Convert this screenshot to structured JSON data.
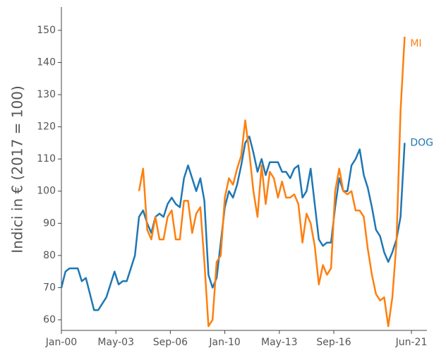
{
  "chart_data": {
    "type": "line",
    "y_label": "Indici in € (2017 = 100)",
    "x": [
      "2000-01",
      "2000-04",
      "2000-07",
      "2000-10",
      "2001-01",
      "2001-04",
      "2001-07",
      "2001-10",
      "2002-01",
      "2002-04",
      "2002-07",
      "2002-10",
      "2003-01",
      "2003-04",
      "2003-07",
      "2003-10",
      "2004-01",
      "2004-04",
      "2004-07",
      "2004-10",
      "2005-01",
      "2005-04",
      "2005-07",
      "2005-10",
      "2006-01",
      "2006-04",
      "2006-07",
      "2006-10",
      "2007-01",
      "2007-04",
      "2007-07",
      "2007-10",
      "2008-01",
      "2008-04",
      "2008-07",
      "2008-10",
      "2009-01",
      "2009-04",
      "2009-07",
      "2009-10",
      "2010-01",
      "2010-04",
      "2010-07",
      "2010-10",
      "2011-01",
      "2011-04",
      "2011-07",
      "2011-10",
      "2012-01",
      "2012-04",
      "2012-07",
      "2012-10",
      "2013-01",
      "2013-04",
      "2013-07",
      "2013-10",
      "2014-01",
      "2014-04",
      "2014-07",
      "2014-10",
      "2015-01",
      "2015-04",
      "2015-07",
      "2015-10",
      "2016-01",
      "2016-04",
      "2016-07",
      "2016-10",
      "2017-01",
      "2017-04",
      "2017-07",
      "2017-10",
      "2018-01",
      "2018-04",
      "2018-07",
      "2018-10",
      "2019-01",
      "2019-04",
      "2019-07",
      "2019-10",
      "2020-01",
      "2020-04",
      "2020-07",
      "2020-10",
      "2021-01"
    ],
    "series": [
      {
        "name": "DOG",
        "color": "#1f77b4",
        "values": [
          70,
          75,
          76,
          76,
          76,
          72,
          73,
          68,
          63,
          63,
          65,
          67,
          71,
          75,
          71,
          72,
          72,
          76,
          80,
          92,
          94,
          90,
          87,
          92,
          93,
          92,
          96,
          98,
          96,
          95,
          104,
          108,
          104,
          100,
          104,
          97,
          74,
          70,
          73,
          84,
          95,
          100,
          98,
          102,
          108,
          115,
          117,
          112,
          106,
          110,
          105,
          109,
          109,
          109,
          106,
          106,
          104,
          107,
          108,
          98,
          100,
          107,
          96,
          85,
          83,
          84,
          84,
          95,
          104,
          100,
          100,
          108,
          110,
          113,
          105,
          101,
          95,
          88,
          86,
          81,
          78,
          81,
          85,
          92,
          115
        ]
      },
      {
        "name": "MI",
        "color": "#ff7f0e",
        "values": [
          null,
          null,
          null,
          null,
          null,
          null,
          null,
          null,
          null,
          null,
          null,
          null,
          null,
          null,
          null,
          null,
          null,
          null,
          null,
          100,
          107,
          88,
          85,
          92,
          85,
          85,
          92,
          94,
          85,
          85,
          97,
          97,
          87,
          93,
          95,
          78,
          58,
          60,
          78,
          80,
          98,
          104,
          102,
          107,
          111,
          122,
          112,
          100,
          92,
          108,
          96,
          106,
          104,
          98,
          103,
          98,
          98,
          99,
          96,
          84,
          93,
          90,
          83,
          71,
          77,
          74,
          76,
          100,
          107,
          100,
          99,
          100,
          94,
          94,
          92,
          82,
          74,
          68,
          66,
          67,
          58,
          67,
          84,
          125,
          148
        ]
      }
    ],
    "xlim": [
      "2000-01",
      "2021-06"
    ],
    "xticks": [
      {
        "value": "2000-01",
        "label": "Jan-00"
      },
      {
        "value": "2003-05",
        "label": "May-03"
      },
      {
        "value": "2006-09",
        "label": "Sep-06"
      },
      {
        "value": "2010-01",
        "label": "Jan-10"
      },
      {
        "value": "2013-05",
        "label": "May-13"
      },
      {
        "value": "2016-09",
        "label": "Sep-16"
      },
      {
        "value": "2021-06",
        "label": "Jun-21"
      }
    ],
    "ylim": [
      56.7,
      156.8
    ],
    "yticks": [
      60,
      70,
      80,
      90,
      100,
      110,
      120,
      130,
      140,
      150
    ]
  }
}
